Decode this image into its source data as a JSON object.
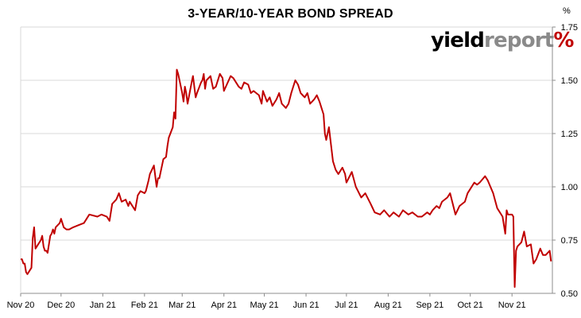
{
  "title": "3-YEAR/10-YEAR BOND SPREAD",
  "unit": "%",
  "logo": {
    "word1": "yield",
    "word2": "report",
    "symbol": "%"
  },
  "colors": {
    "line": "#c00000",
    "grid": "#d9d9d9",
    "axis": "#8c8c8c",
    "logo_symbol": "#c00000"
  },
  "chart_data": {
    "type": "line",
    "title": "3-YEAR/10-YEAR BOND SPREAD",
    "xlabel": "",
    "ylabel": "%",
    "ylim": [
      0.5,
      1.75
    ],
    "yticks": [
      "0.50",
      "0.75",
      "1.00",
      "1.25",
      "1.50",
      "1.75"
    ],
    "yaxis_side": "right",
    "grid": "horizontal",
    "xticks": [
      "Nov 20",
      "Dec 20",
      "Jan 21",
      "Feb 21",
      "Mar 21",
      "Apr 21",
      "May 21",
      "Jun 21",
      "Jul 21",
      "Aug 21",
      "Sep 21",
      "Oct 21",
      "Nov 21"
    ],
    "series": [
      {
        "x": [
          "2020-11-01",
          "2020-11-02",
          "2020-11-03",
          "2020-11-04",
          "2020-11-05",
          "2020-11-06",
          "2020-11-07",
          "2020-11-09",
          "2020-11-10",
          "2020-11-11",
          "2020-11-12",
          "2020-11-13",
          "2020-11-16",
          "2020-11-17",
          "2020-11-18",
          "2020-11-19",
          "2020-11-20",
          "2020-11-21",
          "2020-11-23",
          "2020-11-24",
          "2020-11-25",
          "2020-11-26",
          "2020-11-27",
          "2020-11-30",
          "2020-12-01",
          "2020-12-03",
          "2020-12-05",
          "2020-12-07",
          "2020-12-10",
          "2020-12-14",
          "2020-12-18",
          "2020-12-22",
          "2020-12-28",
          "2020-12-31",
          "2021-01-04",
          "2021-01-06",
          "2021-01-08",
          "2021-01-11",
          "2021-01-13",
          "2021-01-15",
          "2021-01-18",
          "2021-01-20",
          "2021-01-21",
          "2021-01-22",
          "2021-01-25",
          "2021-01-27",
          "2021-01-29",
          "2021-02-01",
          "2021-02-02",
          "2021-02-04",
          "2021-02-05",
          "2021-02-08",
          "2021-02-10",
          "2021-02-11",
          "2021-02-12",
          "2021-02-15",
          "2021-02-17",
          "2021-02-18",
          "2021-02-19",
          "2021-02-22",
          "2021-02-23",
          "2021-02-24",
          "2021-02-25",
          "2021-02-26",
          "2021-03-01",
          "2021-03-02",
          "2021-03-03",
          "2021-03-04",
          "2021-03-05",
          "2021-03-08",
          "2021-03-09",
          "2021-03-10",
          "2021-03-11",
          "2021-03-12",
          "2021-03-15",
          "2021-03-16",
          "2021-03-17",
          "2021-03-18",
          "2021-03-19",
          "2021-03-22",
          "2021-03-24",
          "2021-03-26",
          "2021-03-29",
          "2021-03-31",
          "2021-04-01",
          "2021-04-06",
          "2021-04-08",
          "2021-04-12",
          "2021-04-14",
          "2021-04-16",
          "2021-04-19",
          "2021-04-21",
          "2021-04-23",
          "2021-04-27",
          "2021-04-29",
          "2021-04-30",
          "2021-05-03",
          "2021-05-05",
          "2021-05-07",
          "2021-05-10",
          "2021-05-12",
          "2021-05-14",
          "2021-05-17",
          "2021-05-19",
          "2021-05-21",
          "2021-05-24",
          "2021-05-26",
          "2021-05-28",
          "2021-05-31",
          "2021-06-02",
          "2021-06-04",
          "2021-06-07",
          "2021-06-09",
          "2021-06-11",
          "2021-06-14",
          "2021-06-15",
          "2021-06-16",
          "2021-06-17",
          "2021-06-18",
          "2021-06-21",
          "2021-06-23",
          "2021-06-25",
          "2021-06-28",
          "2021-06-30",
          "2021-07-01",
          "2021-07-05",
          "2021-07-08",
          "2021-07-12",
          "2021-07-15",
          "2021-07-19",
          "2021-07-22",
          "2021-07-26",
          "2021-07-29",
          "2021-08-02",
          "2021-08-05",
          "2021-08-09",
          "2021-08-12",
          "2021-08-16",
          "2021-08-19",
          "2021-08-23",
          "2021-08-26",
          "2021-08-30",
          "2021-09-01",
          "2021-09-03",
          "2021-09-06",
          "2021-09-08",
          "2021-09-10",
          "2021-09-14",
          "2021-09-16",
          "2021-09-20",
          "2021-09-23",
          "2021-09-27",
          "2021-09-29",
          "2021-10-01",
          "2021-10-04",
          "2021-10-06",
          "2021-10-08",
          "2021-10-12",
          "2021-10-14",
          "2021-10-18",
          "2021-10-21",
          "2021-10-25",
          "2021-10-27",
          "2021-10-28",
          "2021-10-29",
          "2021-11-01",
          "2021-11-02",
          "2021-11-03",
          "2021-11-04",
          "2021-11-05",
          "2021-11-08",
          "2021-11-10",
          "2021-11-12",
          "2021-11-15",
          "2021-11-17",
          "2021-11-19",
          "2021-11-22",
          "2021-11-24",
          "2021-11-26",
          "2021-11-29",
          "2021-11-30"
        ],
        "values": [
          0.66,
          0.66,
          0.64,
          0.64,
          0.6,
          0.59,
          0.6,
          0.62,
          0.76,
          0.81,
          0.71,
          0.72,
          0.75,
          0.77,
          0.72,
          0.7,
          0.7,
          0.69,
          0.77,
          0.78,
          0.8,
          0.78,
          0.81,
          0.83,
          0.85,
          0.81,
          0.8,
          0.8,
          0.81,
          0.82,
          0.83,
          0.87,
          0.86,
          0.87,
          0.86,
          0.84,
          0.92,
          0.94,
          0.97,
          0.93,
          0.94,
          0.91,
          0.93,
          0.92,
          0.89,
          0.96,
          0.98,
          0.97,
          0.98,
          1.03,
          1.06,
          1.1,
          1.0,
          1.04,
          1.04,
          1.13,
          1.14,
          1.19,
          1.23,
          1.28,
          1.35,
          1.32,
          1.55,
          1.53,
          1.44,
          1.4,
          1.47,
          1.44,
          1.39,
          1.49,
          1.52,
          1.47,
          1.42,
          1.44,
          1.49,
          1.5,
          1.53,
          1.46,
          1.5,
          1.52,
          1.46,
          1.47,
          1.53,
          1.51,
          1.45,
          1.52,
          1.51,
          1.47,
          1.46,
          1.49,
          1.48,
          1.44,
          1.45,
          1.43,
          1.39,
          1.45,
          1.4,
          1.42,
          1.38,
          1.41,
          1.44,
          1.39,
          1.37,
          1.39,
          1.44,
          1.5,
          1.48,
          1.44,
          1.42,
          1.44,
          1.39,
          1.41,
          1.43,
          1.4,
          1.34,
          1.25,
          1.22,
          1.25,
          1.28,
          1.12,
          1.08,
          1.06,
          1.09,
          1.06,
          1.02,
          1.07,
          1.0,
          0.95,
          0.97,
          0.92,
          0.88,
          0.87,
          0.89,
          0.86,
          0.88,
          0.86,
          0.89,
          0.87,
          0.88,
          0.86,
          0.86,
          0.88,
          0.87,
          0.89,
          0.91,
          0.9,
          0.93,
          0.95,
          0.97,
          0.87,
          0.91,
          0.93,
          0.97,
          0.99,
          1.02,
          1.01,
          1.02,
          1.05,
          1.03,
          0.97,
          0.9,
          0.86,
          0.78,
          0.89,
          0.87,
          0.87,
          0.86,
          0.53,
          0.7,
          0.72,
          0.74,
          0.79,
          0.72,
          0.73,
          0.64,
          0.66,
          0.71,
          0.68,
          0.68,
          0.7,
          0.65
        ]
      }
    ]
  }
}
